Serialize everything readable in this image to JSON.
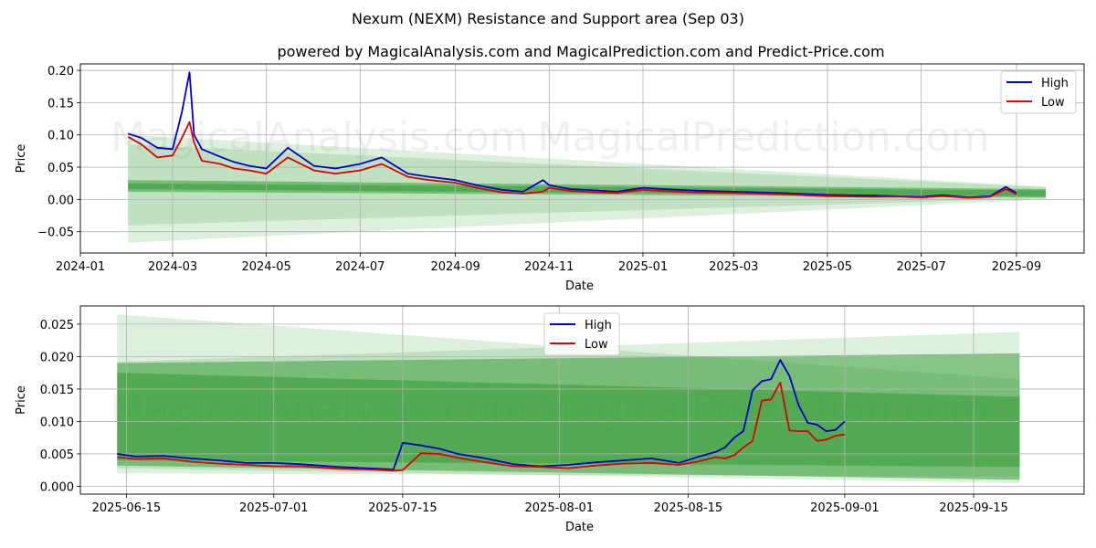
{
  "title": "Nexum (NEXM) Resistance and Support area (Sep 03)",
  "subtitle": "powered by MagicalAnalysis.com and MagicalPrediction.com and Predict-Price.com",
  "watermarks": [
    "MagicalAnalysis.com",
    "MagicalPrediction.com"
  ],
  "colors": {
    "high": "#0000cc",
    "low": "#dd0000",
    "band": "#2e9a2e"
  },
  "chart_data": [
    {
      "type": "line",
      "xlabel": "Date",
      "ylabel": "Price",
      "xlim": [
        "2024-01-01",
        "2025-10-15"
      ],
      "ylim": [
        -0.083,
        0.21
      ],
      "x_ticks": [
        "2024-01",
        "2024-03",
        "2024-05",
        "2024-07",
        "2024-09",
        "2024-11",
        "2025-01",
        "2025-03",
        "2025-05",
        "2025-07",
        "2025-09"
      ],
      "y_ticks": [
        "0.20",
        "0.15",
        "0.10",
        "0.05",
        "0.00",
        "−0.05"
      ],
      "grid": true,
      "legend": {
        "position": "top-right",
        "entries": [
          "High",
          "Low"
        ]
      },
      "x": [
        "2024-02-01",
        "2024-02-10",
        "2024-02-20",
        "2024-03-01",
        "2024-03-07",
        "2024-03-12",
        "2024-03-15",
        "2024-03-20",
        "2024-04-01",
        "2024-04-10",
        "2024-04-20",
        "2024-05-01",
        "2024-05-15",
        "2024-06-01",
        "2024-06-15",
        "2024-07-01",
        "2024-07-15",
        "2024-08-01",
        "2024-08-15",
        "2024-09-01",
        "2024-09-15",
        "2024-10-01",
        "2024-10-15",
        "2024-10-28",
        "2024-11-01",
        "2024-11-15",
        "2024-12-01",
        "2024-12-15",
        "2025-01-01",
        "2025-01-15",
        "2025-02-01",
        "2025-03-01",
        "2025-04-01",
        "2025-05-01",
        "2025-06-01",
        "2025-06-15",
        "2025-07-01",
        "2025-07-15",
        "2025-08-01",
        "2025-08-15",
        "2025-08-25",
        "2025-09-01"
      ],
      "series": [
        {
          "name": "High",
          "values": [
            0.102,
            0.095,
            0.08,
            0.078,
            0.135,
            0.197,
            0.1,
            0.078,
            0.066,
            0.058,
            0.052,
            0.048,
            0.08,
            0.052,
            0.048,
            0.055,
            0.065,
            0.04,
            0.035,
            0.03,
            0.022,
            0.015,
            0.012,
            0.03,
            0.022,
            0.016,
            0.014,
            0.012,
            0.018,
            0.016,
            0.014,
            0.012,
            0.01,
            0.007,
            0.006,
            0.005,
            0.004,
            0.0068,
            0.003,
            0.005,
            0.0195,
            0.01
          ]
        },
        {
          "name": "Low",
          "values": [
            0.097,
            0.085,
            0.065,
            0.068,
            0.095,
            0.12,
            0.088,
            0.06,
            0.055,
            0.048,
            0.045,
            0.04,
            0.065,
            0.045,
            0.04,
            0.045,
            0.055,
            0.035,
            0.03,
            0.026,
            0.018,
            0.011,
            0.009,
            0.012,
            0.018,
            0.013,
            0.011,
            0.01,
            0.015,
            0.013,
            0.011,
            0.01,
            0.008,
            0.005,
            0.004,
            0.0045,
            0.003,
            0.0052,
            0.0025,
            0.004,
            0.016,
            0.008
          ]
        }
      ],
      "bands": [
        {
          "x": [
            "2024-02-01",
            "2025-09-20"
          ],
          "upper": [
            0.1,
            0.02
          ],
          "lower": [
            -0.067,
            0.0
          ]
        },
        {
          "x": [
            "2024-02-01",
            "2025-09-20"
          ],
          "upper": [
            0.085,
            0.019
          ],
          "lower": [
            -0.04,
            0.002
          ]
        },
        {
          "x": [
            "2024-02-01",
            "2025-09-20"
          ],
          "upper": [
            0.03,
            0.016
          ],
          "lower": [
            0.012,
            0.003
          ]
        },
        {
          "x": [
            "2024-02-01",
            "2025-09-20"
          ],
          "upper": [
            0.025,
            0.014
          ],
          "lower": [
            0.016,
            0.005
          ]
        }
      ]
    },
    {
      "type": "line",
      "xlabel": "Date",
      "ylabel": "Price",
      "xlim": [
        "2025-06-10",
        "2025-09-27"
      ],
      "ylim": [
        -0.0012,
        0.0278
      ],
      "x_ticks": [
        "2025-06-15",
        "2025-07-01",
        "2025-07-15",
        "2025-08-01",
        "2025-08-15",
        "2025-09-01",
        "2025-09-15"
      ],
      "y_ticks": [
        "0.025",
        "0.020",
        "0.015",
        "0.010",
        "0.005",
        "0.000"
      ],
      "grid": true,
      "legend": {
        "position": "top-center",
        "entries": [
          "High",
          "Low"
        ]
      },
      "x": [
        "2025-06-14",
        "2025-06-16",
        "2025-06-19",
        "2025-06-22",
        "2025-06-25",
        "2025-06-28",
        "2025-07-01",
        "2025-07-04",
        "2025-07-08",
        "2025-07-11",
        "2025-07-14",
        "2025-07-15",
        "2025-07-17",
        "2025-07-19",
        "2025-07-21",
        "2025-07-24",
        "2025-07-27",
        "2025-07-30",
        "2025-08-02",
        "2025-08-05",
        "2025-08-08",
        "2025-08-11",
        "2025-08-14",
        "2025-08-16",
        "2025-08-18",
        "2025-08-19",
        "2025-08-20",
        "2025-08-21",
        "2025-08-22",
        "2025-08-23",
        "2025-08-24",
        "2025-08-25",
        "2025-08-26",
        "2025-08-27",
        "2025-08-28",
        "2025-08-29",
        "2025-08-30",
        "2025-08-31",
        "2025-09-01"
      ],
      "series": [
        {
          "name": "High",
          "values": [
            0.005,
            0.0046,
            0.0047,
            0.0043,
            0.004,
            0.0036,
            0.0036,
            0.0034,
            0.003,
            0.0028,
            0.0026,
            0.0067,
            0.0063,
            0.0058,
            0.005,
            0.0043,
            0.0034,
            0.0031,
            0.0033,
            0.0037,
            0.004,
            0.0043,
            0.0036,
            0.0045,
            0.0053,
            0.006,
            0.0075,
            0.0085,
            0.0148,
            0.0162,
            0.0165,
            0.0195,
            0.017,
            0.0125,
            0.0098,
            0.0095,
            0.0085,
            0.0087,
            0.01
          ]
        },
        {
          "name": "Low",
          "values": [
            0.0045,
            0.0042,
            0.0043,
            0.0038,
            0.0035,
            0.0033,
            0.0031,
            0.0031,
            0.0027,
            0.0026,
            0.0024,
            0.0025,
            0.0051,
            0.005,
            0.0044,
            0.0037,
            0.0031,
            0.003,
            0.0028,
            0.0032,
            0.0035,
            0.0036,
            0.0033,
            0.0038,
            0.0045,
            0.0043,
            0.0048,
            0.006,
            0.007,
            0.0132,
            0.0134,
            0.016,
            0.0086,
            0.0085,
            0.0085,
            0.007,
            0.0072,
            0.0078,
            0.008
          ]
        }
      ],
      "bands": [
        {
          "x": [
            "2025-06-14",
            "2025-09-20"
          ],
          "upper": [
            0.0265,
            0.0165
          ],
          "lower": [
            0.002,
            0.0015
          ]
        },
        {
          "x": [
            "2025-06-14",
            "2025-09-20"
          ],
          "upper": [
            0.0192,
            0.0238
          ],
          "lower": [
            0.0028,
            0.0005
          ]
        },
        {
          "x": [
            "2025-06-14",
            "2025-09-20"
          ],
          "upper": [
            0.019,
            0.0205
          ],
          "lower": [
            0.0032,
            0.001
          ]
        },
        {
          "x": [
            "2025-06-14",
            "2025-09-20"
          ],
          "upper": [
            0.0175,
            0.0138
          ],
          "lower": [
            0.004,
            0.003
          ]
        }
      ]
    }
  ]
}
